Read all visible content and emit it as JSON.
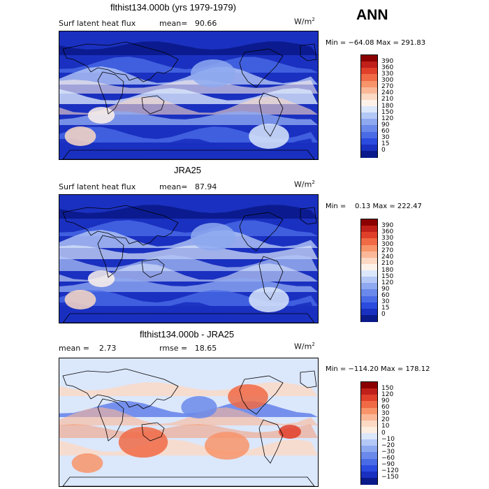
{
  "season": "ANN",
  "panels": [
    {
      "title": "flthist134.000b (yrs 1979-1979)",
      "left_label": "Surf latent heat flux",
      "right_label": "mean=   90.66",
      "units": "W/m",
      "units_sup": "2",
      "minmax": "Min = −64.08 Max = 291.83",
      "colorbar": {
        "levels": [
          "390",
          "360",
          "330",
          "300",
          "270",
          "240",
          "210",
          "180",
          "150",
          "120",
          "90",
          "60",
          "30",
          "15",
          "0"
        ],
        "colors": [
          "#8b0000",
          "#c0201a",
          "#e0402a",
          "#f06a45",
          "#f8946a",
          "#fbb898",
          "#fcd9c4",
          "#fdf2ea",
          "#dbe7fb",
          "#b4c8f6",
          "#8ea9f0",
          "#6a89ea",
          "#4a6be6",
          "#2a4bde",
          "#1a30c0",
          "#0a1a8a"
        ]
      },
      "map_style": "flux_model"
    },
    {
      "title": "JRA25",
      "left_label": "Surf latent heat flux",
      "right_label": "mean=   87.94",
      "units": "W/m",
      "units_sup": "2",
      "minmax": "Min =    0.13 Max = 222.47",
      "colorbar": {
        "levels": [
          "390",
          "360",
          "330",
          "300",
          "270",
          "240",
          "210",
          "180",
          "150",
          "120",
          "90",
          "60",
          "30",
          "15",
          "0"
        ],
        "colors": [
          "#8b0000",
          "#c0201a",
          "#e0402a",
          "#f06a45",
          "#f8946a",
          "#fbb898",
          "#fcd9c4",
          "#fdf2ea",
          "#dbe7fb",
          "#b4c8f6",
          "#8ea9f0",
          "#6a89ea",
          "#4a6be6",
          "#2a4bde",
          "#1a30c0",
          "#0a1a8a"
        ]
      },
      "map_style": "flux_obs"
    },
    {
      "title": "flthist134.000b - JRA25",
      "left_label": "mean =    2.73",
      "right_label": "rmse =   18.65",
      "units": "W/m",
      "units_sup": "2",
      "minmax": "Min = −114.20 Max = 178.12",
      "colorbar": {
        "levels": [
          "150",
          "120",
          "90",
          "60",
          "30",
          "20",
          "10",
          "0",
          "−10",
          "−20",
          "−30",
          "−60",
          "−90",
          "−120",
          "−150"
        ],
        "colors": [
          "#8b0000",
          "#c0201a",
          "#e0402a",
          "#f06a45",
          "#f8946a",
          "#fbb898",
          "#fcd9c4",
          "#fdece0",
          "#dbe7fb",
          "#b4c8f6",
          "#8ea9f0",
          "#6a89ea",
          "#4a6be6",
          "#2a4bde",
          "#1a30c0",
          "#0a1a8a"
        ]
      },
      "map_style": "diff"
    }
  ]
}
